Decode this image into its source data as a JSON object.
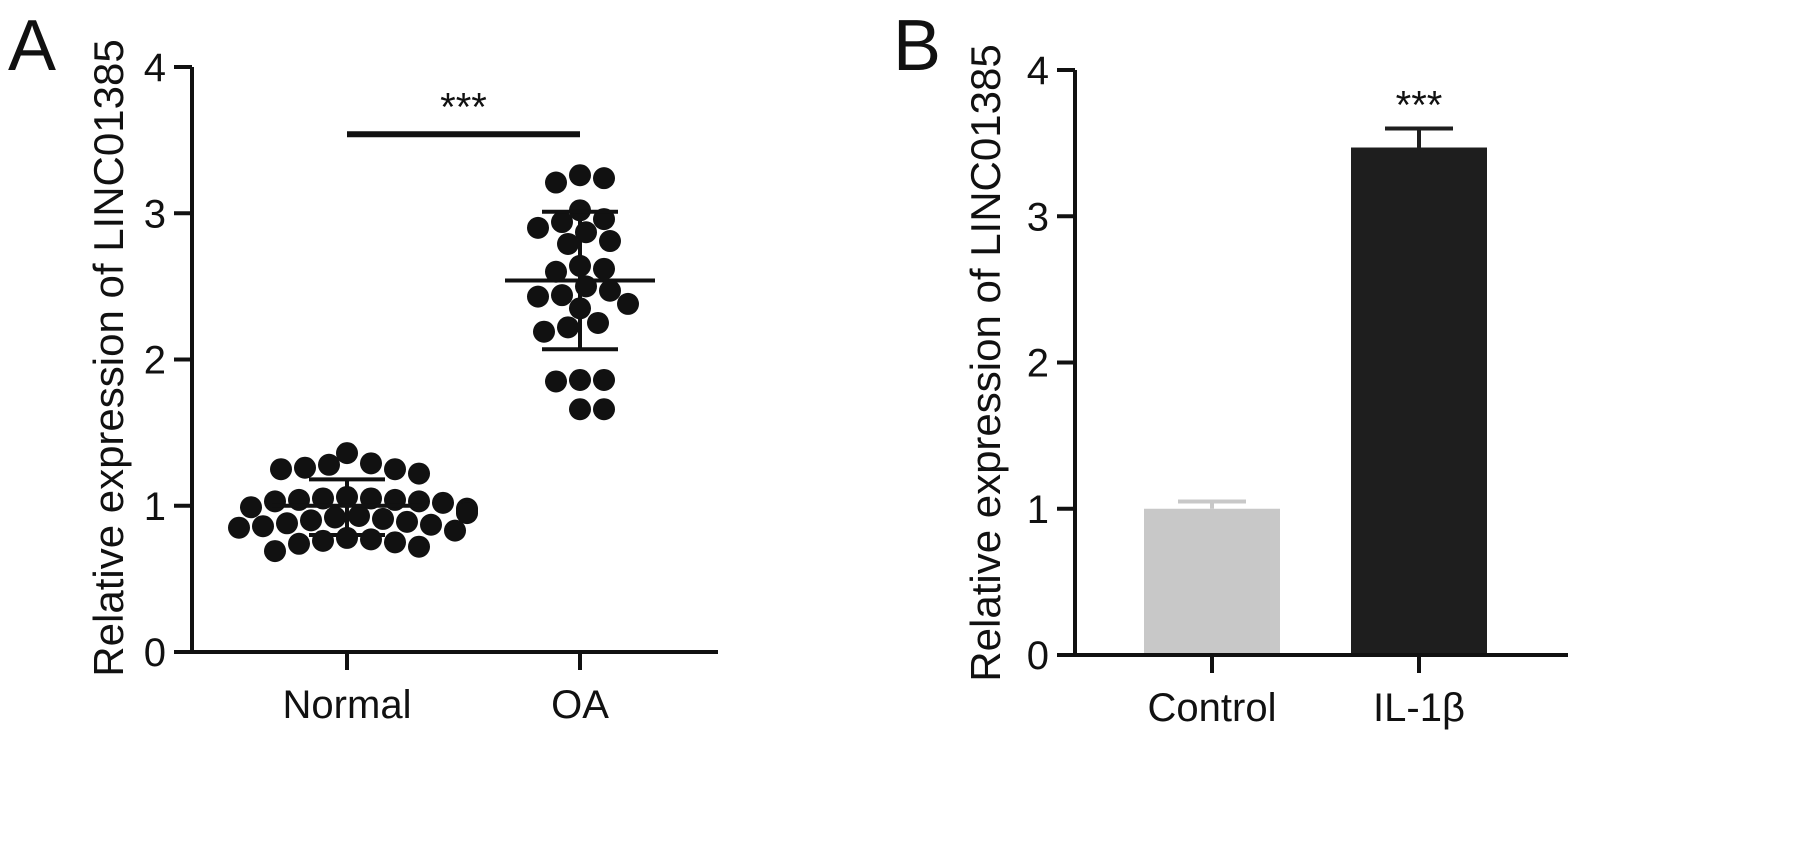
{
  "panels": [
    {
      "panel_label": "A",
      "chart_data": {
        "type": "scatter",
        "title": "",
        "xlabel": "",
        "ylabel": "Relative expression of LINC01385",
        "ylim": [
          0,
          4
        ],
        "yticks": [
          "0",
          "1",
          "2",
          "3",
          "4"
        ],
        "categories": [
          "Normal",
          "OA"
        ],
        "grid": false,
        "series": [
          {
            "category": "Normal",
            "mean": 1.0,
            "sd_low": 0.8,
            "sd_high": 1.18,
            "points": [
              1.36,
              1.28,
              1.25,
              1.26,
              1.25,
              1.29,
              1.22,
              1.06,
              1.04,
              1.05,
              1.03,
              1.02,
              1.03,
              1.04,
              1.05,
              0.98,
              0.96,
              0.97,
              0.95,
              0.99,
              0.93,
              0.9,
              0.92,
              0.91,
              0.88,
              0.89,
              0.87,
              0.85,
              0.83,
              0.86,
              0.76,
              0.78,
              0.77,
              0.74,
              0.72,
              0.69,
              0.75
            ]
          },
          {
            "category": "OA",
            "mean": 2.54,
            "sd_low": 2.07,
            "sd_high": 3.01,
            "points": [
              3.26,
              3.24,
              3.21,
              3.02,
              2.96,
              2.94,
              2.9,
              2.87,
              2.81,
              2.79,
              2.64,
              2.62,
              2.6,
              2.5,
              2.47,
              2.43,
              2.44,
              2.38,
              2.35,
              2.25,
              2.22,
              2.19,
              1.86,
              1.86,
              1.85,
              1.66,
              1.66
            ]
          }
        ],
        "annotations": [
          {
            "text": "***",
            "between": [
              "Normal",
              "OA"
            ],
            "y": 3.54
          }
        ]
      }
    },
    {
      "panel_label": "B",
      "chart_data": {
        "type": "bar",
        "title": "",
        "xlabel": "",
        "ylabel": "Relative expression of LINC01385",
        "ylim": [
          0,
          4
        ],
        "yticks": [
          "0",
          "1",
          "2",
          "3",
          "4"
        ],
        "categories": [
          "Control",
          "IL-1β"
        ],
        "grid": false,
        "values": [
          1.0,
          3.47
        ],
        "errors": [
          0.05,
          0.13
        ],
        "colors": [
          "#c8c8c8",
          "#1e1e1e"
        ],
        "annotations": [
          {
            "text": "***",
            "category": "IL-1β"
          }
        ]
      }
    }
  ]
}
